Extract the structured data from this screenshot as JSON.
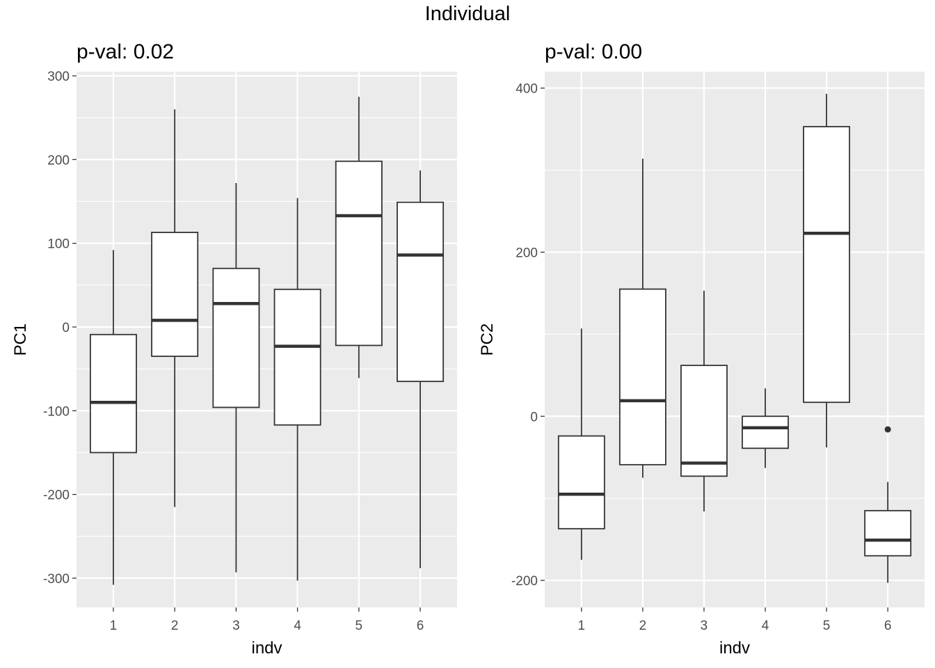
{
  "title": "Individual",
  "chart_data": [
    {
      "type": "box",
      "title": "p-val: 0.02",
      "xlabel": "indv",
      "ylabel": "PC1",
      "categories": [
        "1",
        "2",
        "3",
        "4",
        "5",
        "6"
      ],
      "ylim": [
        -335,
        305
      ],
      "yticks": [
        -300,
        -200,
        -100,
        0,
        100,
        200,
        300
      ],
      "ytick_labels": [
        "-300",
        "-200",
        "-100",
        "0",
        "100",
        "200",
        "300"
      ],
      "boxes": [
        {
          "category": "1",
          "whisker_low": -308,
          "q1": -150,
          "median": -90,
          "q3": -9,
          "whisker_high": 92,
          "outliers": []
        },
        {
          "category": "2",
          "whisker_low": -215,
          "q1": -35,
          "median": 8,
          "q3": 113,
          "whisker_high": 260,
          "outliers": []
        },
        {
          "category": "3",
          "whisker_low": -293,
          "q1": -96,
          "median": 28,
          "q3": 70,
          "whisker_high": 172,
          "outliers": []
        },
        {
          "category": "4",
          "whisker_low": -303,
          "q1": -117,
          "median": -23,
          "q3": 45,
          "whisker_high": 154,
          "outliers": []
        },
        {
          "category": "5",
          "whisker_low": -61,
          "q1": -22,
          "median": 133,
          "q3": 198,
          "whisker_high": 275,
          "outliers": []
        },
        {
          "category": "6",
          "whisker_low": -288,
          "q1": -65,
          "median": 86,
          "q3": 149,
          "whisker_high": 187,
          "outliers": []
        }
      ]
    },
    {
      "type": "box",
      "title": "p-val: 0.00",
      "xlabel": "indv",
      "ylabel": "PC2",
      "categories": [
        "1",
        "2",
        "3",
        "4",
        "5",
        "6"
      ],
      "ylim": [
        -233,
        420
      ],
      "yticks": [
        -200,
        0,
        200,
        400
      ],
      "ytick_labels": [
        "-200",
        "0",
        "200",
        "400"
      ],
      "boxes": [
        {
          "category": "1",
          "whisker_low": -175,
          "q1": -137,
          "median": -95,
          "q3": -24,
          "whisker_high": 107,
          "outliers": []
        },
        {
          "category": "2",
          "whisker_low": -75,
          "q1": -59,
          "median": 19,
          "q3": 155,
          "whisker_high": 314,
          "outliers": []
        },
        {
          "category": "3",
          "whisker_low": -116,
          "q1": -73,
          "median": -57,
          "q3": 62,
          "whisker_high": 153,
          "outliers": []
        },
        {
          "category": "4",
          "whisker_low": -63,
          "q1": -39,
          "median": -14,
          "q3": 0,
          "whisker_high": 34,
          "outliers": []
        },
        {
          "category": "5",
          "whisker_low": -38,
          "q1": 17,
          "median": 223,
          "q3": 353,
          "whisker_high": 393,
          "outliers": []
        },
        {
          "category": "6",
          "whisker_low": -203,
          "q1": -170,
          "median": -151,
          "q3": -115,
          "whisker_high": -80,
          "outliers": [
            -16
          ]
        }
      ]
    }
  ]
}
